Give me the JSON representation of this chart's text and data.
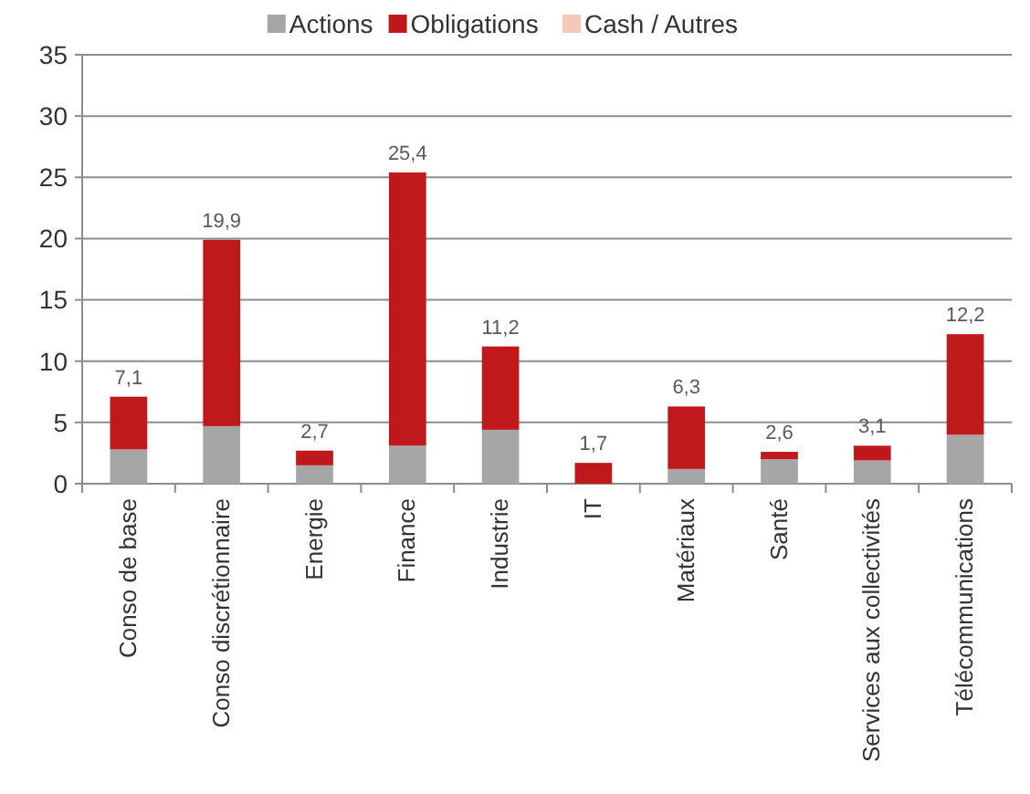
{
  "chart_data": {
    "type": "bar",
    "stacked": true,
    "categories": [
      "Conso de base",
      "Conso discrétionnaire",
      "Energie",
      "Finance",
      "Industrie",
      "IT",
      "Matériaux",
      "Santé",
      "Services aux collectivités",
      "Télécommunications"
    ],
    "series": [
      {
        "name": "Actions",
        "color": "#a6a6a6",
        "values": [
          2.8,
          4.7,
          1.5,
          3.1,
          4.4,
          null,
          1.2,
          2.0,
          1.9,
          4.0
        ]
      },
      {
        "name": "Obligations",
        "color": "#c0191b",
        "values": [
          4.3,
          15.2,
          1.2,
          22.3,
          6.8,
          1.7,
          5.1,
          0.6,
          1.2,
          8.2
        ]
      },
      {
        "name": "Cash / Autres",
        "color": "#f6c8b6",
        "values": [
          0,
          0,
          0,
          0,
          0,
          0,
          0,
          0,
          0,
          0
        ]
      }
    ],
    "totals": [
      "7,1",
      "19,9",
      "2,7",
      "25,4",
      "11,2",
      "1,7",
      "6,3",
      "2,6",
      "3,1",
      "12,2"
    ],
    "ylim": [
      0,
      35
    ],
    "yticks": [
      0,
      5,
      10,
      15,
      20,
      25,
      30,
      35
    ],
    "grid": "y",
    "legend": "top"
  }
}
